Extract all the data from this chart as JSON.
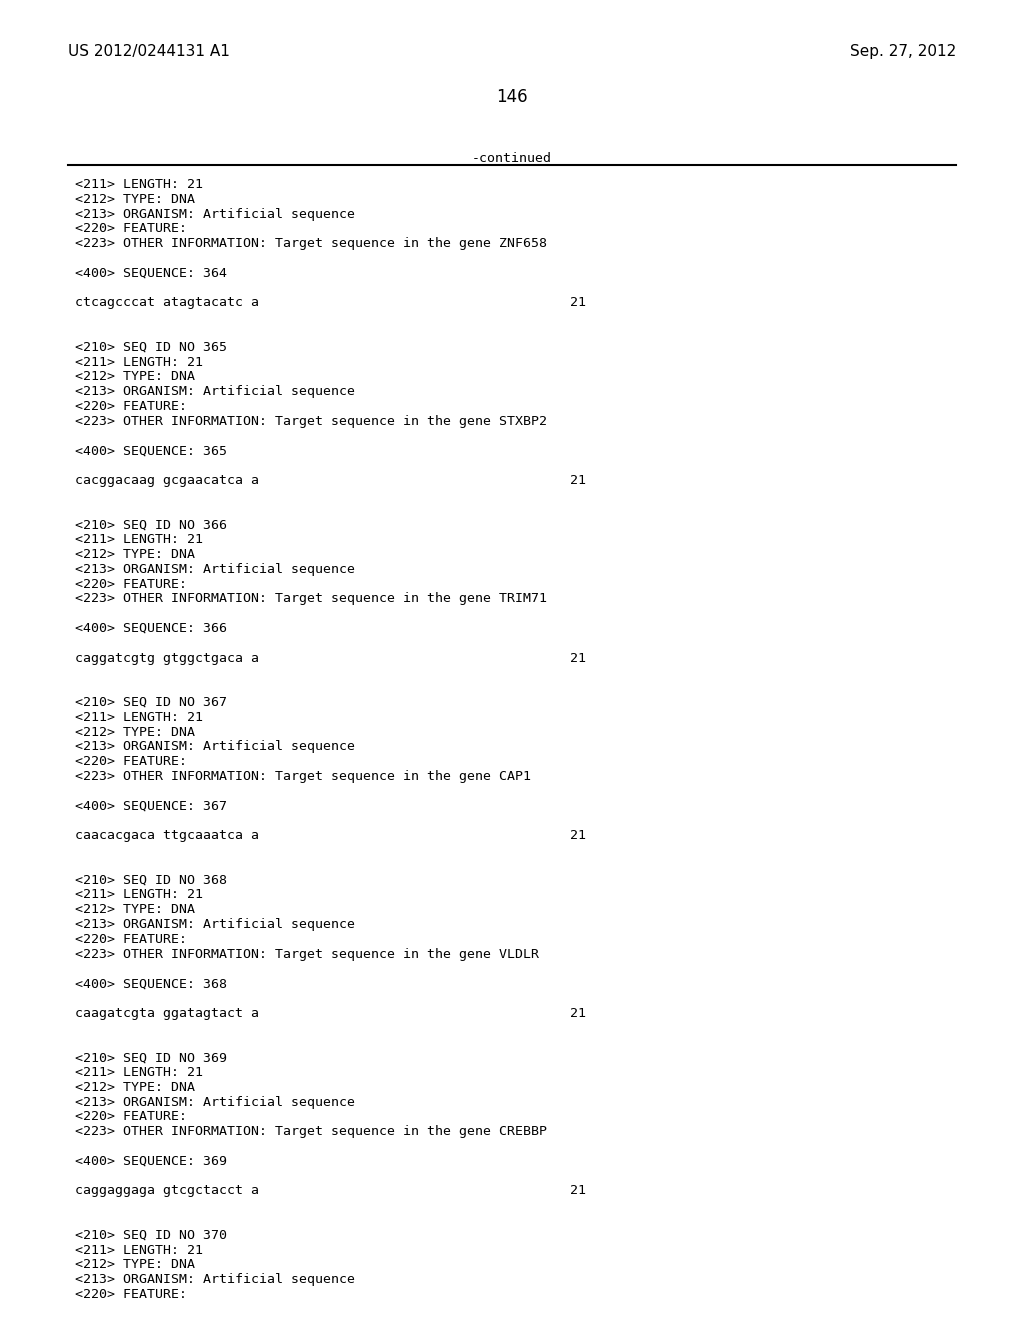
{
  "page_number": "146",
  "top_left": "US 2012/0244131 A1",
  "top_right": "Sep. 27, 2012",
  "continued_label": "-continued",
  "background_color": "#ffffff",
  "text_color": "#000000",
  "font_size_header": 11,
  "font_size_body": 9.5,
  "font_size_page_num": 12,
  "lines": [
    "<211> LENGTH: 21",
    "<212> TYPE: DNA",
    "<213> ORGANISM: Artificial sequence",
    "<220> FEATURE:",
    "<223> OTHER INFORMATION: Target sequence in the gene ZNF658",
    "",
    "<400> SEQUENCE: 364",
    "",
    "SEQ_ctcagcccat atagtacatc a",
    "",
    "",
    "<210> SEQ ID NO 365",
    "<211> LENGTH: 21",
    "<212> TYPE: DNA",
    "<213> ORGANISM: Artificial sequence",
    "<220> FEATURE:",
    "<223> OTHER INFORMATION: Target sequence in the gene STXBP2",
    "",
    "<400> SEQUENCE: 365",
    "",
    "SEQ_cacggacaag gcgaacatca a",
    "",
    "",
    "<210> SEQ ID NO 366",
    "<211> LENGTH: 21",
    "<212> TYPE: DNA",
    "<213> ORGANISM: Artificial sequence",
    "<220> FEATURE:",
    "<223> OTHER INFORMATION: Target sequence in the gene TRIM71",
    "",
    "<400> SEQUENCE: 366",
    "",
    "SEQ_caggatcgtg gtggctgaca a",
    "",
    "",
    "<210> SEQ ID NO 367",
    "<211> LENGTH: 21",
    "<212> TYPE: DNA",
    "<213> ORGANISM: Artificial sequence",
    "<220> FEATURE:",
    "<223> OTHER INFORMATION: Target sequence in the gene CAP1",
    "",
    "<400> SEQUENCE: 367",
    "",
    "SEQ_caacacgaca ttgcaaatca a",
    "",
    "",
    "<210> SEQ ID NO 368",
    "<211> LENGTH: 21",
    "<212> TYPE: DNA",
    "<213> ORGANISM: Artificial sequence",
    "<220> FEATURE:",
    "<223> OTHER INFORMATION: Target sequence in the gene VLDLR",
    "",
    "<400> SEQUENCE: 368",
    "",
    "SEQ_caagatcgta ggatagtact a",
    "",
    "",
    "<210> SEQ ID NO 369",
    "<211> LENGTH: 21",
    "<212> TYPE: DNA",
    "<213> ORGANISM: Artificial sequence",
    "<220> FEATURE:",
    "<223> OTHER INFORMATION: Target sequence in the gene CREBBP",
    "",
    "<400> SEQUENCE: 369",
    "",
    "SEQ_caggaggaga gtcgctacct a",
    "",
    "",
    "<210> SEQ ID NO 370",
    "<211> LENGTH: 21",
    "<212> TYPE: DNA",
    "<213> ORGANISM: Artificial sequence",
    "<220> FEATURE:"
  ]
}
